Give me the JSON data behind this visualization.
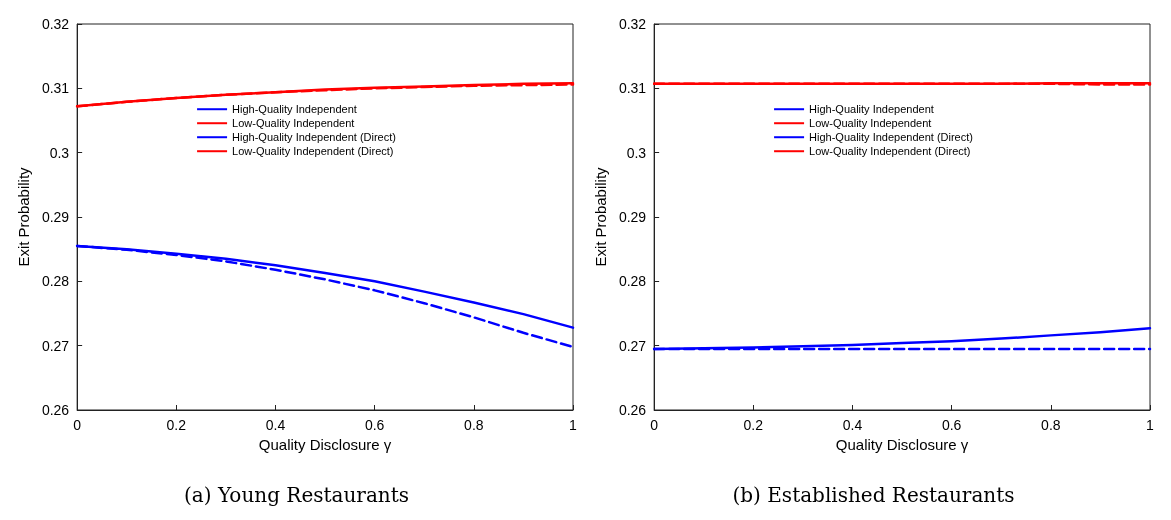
{
  "chart_data": [
    {
      "type": "line",
      "title": "(a) Young Restaurants",
      "xlabel": "Quality Disclosure γ",
      "ylabel": "Exit Probability",
      "x": [
        0,
        0.1,
        0.2,
        0.3,
        0.4,
        0.5,
        0.6,
        0.7,
        0.8,
        0.9,
        1
      ],
      "xlim": [
        0,
        1
      ],
      "xticks": [
        0,
        0.2,
        0.4,
        0.6,
        0.8,
        1
      ],
      "ylim": [
        0.26,
        0.32
      ],
      "yticks": [
        0.26,
        0.27,
        0.28,
        0.29,
        0.3,
        0.31,
        0.32
      ],
      "grid": false,
      "legend": "top",
      "marker": "none",
      "series": [
        {
          "name": "High-Quality Independent",
          "color": "#0000ff",
          "line_style": "solid",
          "values": [
            0.2855,
            0.285,
            0.2843,
            0.2835,
            0.2825,
            0.2813,
            0.28,
            0.2784,
            0.2767,
            0.2749,
            0.2728
          ]
        },
        {
          "name": "Low-Quality Independent",
          "color": "#ff0000",
          "line_style": "solid",
          "values": [
            0.3072,
            0.3079,
            0.3085,
            0.309,
            0.3094,
            0.3098,
            0.3101,
            0.3103,
            0.3105,
            0.3107,
            0.3108
          ]
        },
        {
          "name": "High-Quality Independent (Direct)",
          "color": "#0000ff",
          "line_style": "dashed",
          "values": [
            0.2855,
            0.2849,
            0.2841,
            0.2831,
            0.2818,
            0.2803,
            0.2786,
            0.2766,
            0.2744,
            0.272,
            0.2698
          ]
        },
        {
          "name": "Low-Quality Independent (Direct)",
          "color": "#ff0000",
          "line_style": "dashed",
          "values": [
            0.3072,
            0.3079,
            0.3085,
            0.309,
            0.3094,
            0.3097,
            0.31,
            0.3102,
            0.3104,
            0.3105,
            0.3106
          ]
        }
      ]
    },
    {
      "type": "line",
      "title": "(b) Established Restaurants",
      "xlabel": "Quality Disclosure γ",
      "ylabel": "Exit Probability",
      "x": [
        0,
        0.1,
        0.2,
        0.3,
        0.4,
        0.5,
        0.6,
        0.7,
        0.8,
        0.9,
        1
      ],
      "xlim": [
        0,
        1
      ],
      "xticks": [
        0,
        0.2,
        0.4,
        0.6,
        0.8,
        1
      ],
      "ylim": [
        0.26,
        0.32
      ],
      "yticks": [
        0.26,
        0.27,
        0.28,
        0.29,
        0.3,
        0.31,
        0.32
      ],
      "grid": false,
      "legend": "top",
      "marker": "none",
      "series": [
        {
          "name": "High-Quality Independent",
          "color": "#0000ff",
          "line_style": "solid",
          "values": [
            0.2695,
            0.2696,
            0.2697,
            0.2699,
            0.2701,
            0.2704,
            0.2707,
            0.2711,
            0.2716,
            0.2721,
            0.2727
          ]
        },
        {
          "name": "Low-Quality Independent",
          "color": "#ff0000",
          "line_style": "solid",
          "values": [
            0.3107,
            0.3107,
            0.3107,
            0.3107,
            0.3107,
            0.3107,
            0.3107,
            0.3107,
            0.3108,
            0.3108,
            0.3108
          ]
        },
        {
          "name": "High-Quality Independent (Direct)",
          "color": "#0000ff",
          "line_style": "dashed",
          "values": [
            0.2695,
            0.2695,
            0.2695,
            0.2695,
            0.2695,
            0.2695,
            0.2695,
            0.2695,
            0.2695,
            0.2695,
            0.2695
          ]
        },
        {
          "name": "Low-Quality Independent (Direct)",
          "color": "#ff0000",
          "line_style": "dashed",
          "values": [
            0.3107,
            0.3107,
            0.3107,
            0.3107,
            0.3107,
            0.3107,
            0.3107,
            0.3107,
            0.3107,
            0.3106,
            0.3106
          ]
        }
      ]
    }
  ]
}
